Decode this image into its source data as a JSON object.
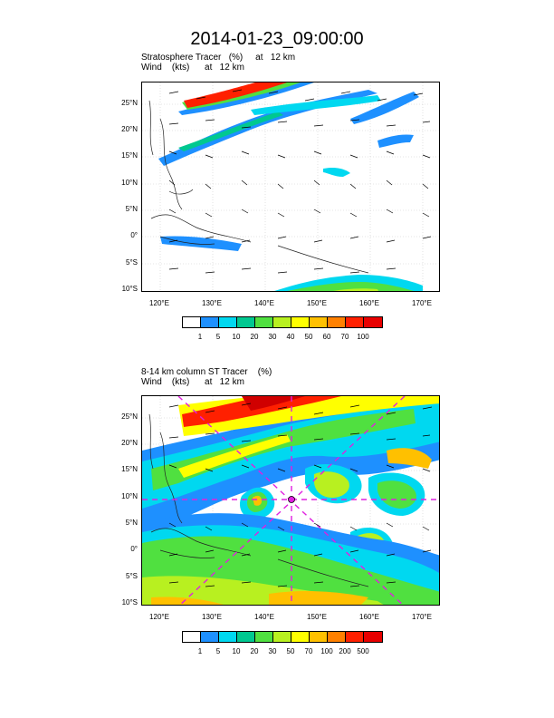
{
  "title": "2014-01-23_09:00:00",
  "panel1": {
    "line1": "Stratosphere Tracer   (%)     at   12 km",
    "line2": "Wind    (kts)      at   12 km",
    "colorbar_labels": [
      "1",
      "5",
      "10",
      "20",
      "30",
      "40",
      "50",
      "60",
      "70",
      "100"
    ]
  },
  "panel2": {
    "line1": "8-14 km column ST Tracer    (%)",
    "line2": "Wind    (kts)      at   12 km",
    "colorbar_labels": [
      "1",
      "5",
      "10",
      "20",
      "30",
      "50",
      "70",
      "100",
      "200",
      "500"
    ]
  },
  "lat_labels": [
    "25°N",
    "20°N",
    "15°N",
    "10°N",
    "5°N",
    "0°",
    "5°S",
    "10°S"
  ],
  "lon_labels": [
    "120°E",
    "130°E",
    "140°E",
    "150°E",
    "160°E",
    "170°E"
  ],
  "colors": [
    "#ffffff",
    "#1e90ff",
    "#00d8f0",
    "#00c890",
    "#50e040",
    "#b8f020",
    "#ffff00",
    "#ffc000",
    "#ff8000",
    "#ff2000"
  ]
}
